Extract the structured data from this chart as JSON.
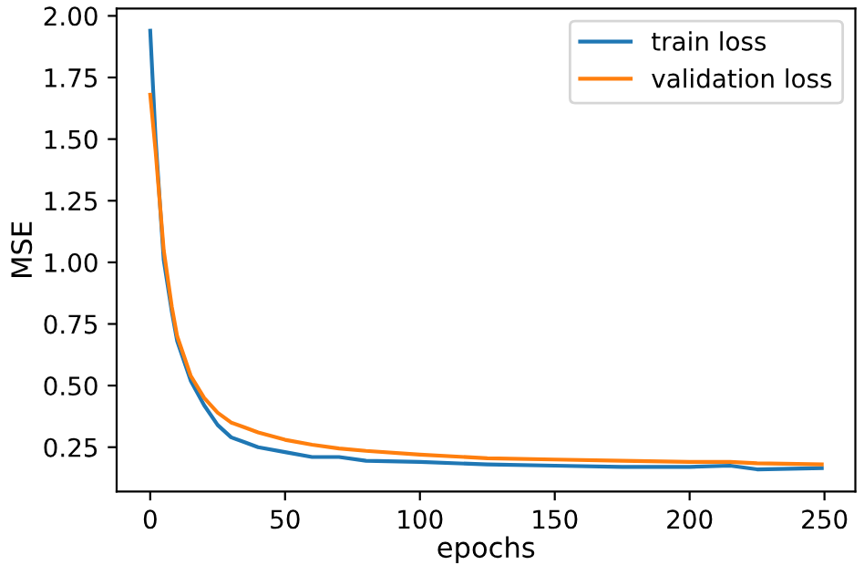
{
  "chart_data": {
    "type": "line",
    "xlabel": "epochs",
    "ylabel": "MSE",
    "xlim": [
      -12.45,
      261.45
    ],
    "xticks": [
      0,
      50,
      100,
      150,
      200,
      250
    ],
    "ylim": [
      0.07,
      2.03
    ],
    "yticks": [
      {
        "value": 0.25,
        "label": "0.25"
      },
      {
        "value": 0.5,
        "label": "0.50"
      },
      {
        "value": 0.75,
        "label": "0.75"
      },
      {
        "value": 1.0,
        "label": "1.00"
      },
      {
        "value": 1.25,
        "label": "1.25"
      },
      {
        "value": 1.5,
        "label": "1.50"
      },
      {
        "value": 1.75,
        "label": "1.75"
      },
      {
        "value": 2.0,
        "label": "2.00"
      }
    ],
    "x": [
      0,
      2,
      5,
      8,
      10,
      15,
      20,
      25,
      30,
      35,
      40,
      50,
      60,
      70,
      80,
      100,
      125,
      150,
      175,
      200,
      215,
      225,
      249
    ],
    "series": [
      {
        "name": "train loss",
        "color": "#1f77b4",
        "values": [
          1.94,
          1.5,
          1.01,
          0.8,
          0.68,
          0.52,
          0.42,
          0.34,
          0.29,
          0.27,
          0.25,
          0.23,
          0.21,
          0.21,
          0.195,
          0.19,
          0.18,
          0.175,
          0.17,
          0.17,
          0.175,
          0.16,
          0.165
        ]
      },
      {
        "name": "validation loss",
        "color": "#ff7f0e",
        "values": [
          1.68,
          1.45,
          1.05,
          0.82,
          0.7,
          0.54,
          0.45,
          0.39,
          0.35,
          0.33,
          0.31,
          0.28,
          0.26,
          0.245,
          0.235,
          0.22,
          0.205,
          0.2,
          0.195,
          0.19,
          0.19,
          0.185,
          0.18
        ]
      }
    ],
    "legend": "top right",
    "grid": false,
    "marker": "none",
    "line_style": "solid"
  }
}
